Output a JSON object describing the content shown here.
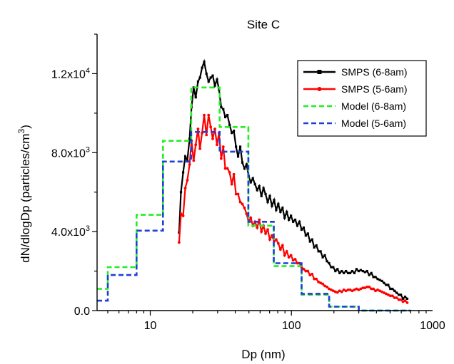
{
  "chart_data": {
    "type": "line",
    "title": "Site C",
    "xlabel": "Dp (nm)",
    "ylabel": "dN/dlogDp (particles/cm",
    "ylabel_sup": "3",
    "ylabel_end": ")",
    "x_scale": "log",
    "xlim": [
      4.2,
      1000
    ],
    "ylim": [
      0,
      14000
    ],
    "x_ticks": [
      {
        "value": 10,
        "label": "10"
      },
      {
        "value": 100,
        "label": "100"
      },
      {
        "value": 1000,
        "label": "1000"
      }
    ],
    "y_ticks": [
      {
        "value": 0,
        "label": "0.0"
      },
      {
        "value": 4000,
        "label": "4.0x10",
        "exp": "3"
      },
      {
        "value": 8000,
        "label": "8.0x10",
        "exp": "3"
      },
      {
        "value": 12000,
        "label": "1.2x10",
        "exp": "4"
      }
    ],
    "grid": false,
    "legend_position": "top-right",
    "series": [
      {
        "name": "SMPS (6-8am)",
        "color": "#000000",
        "style": "solid",
        "marker": "square",
        "x": [
          16.0,
          16.5,
          17.1,
          17.7,
          18.3,
          19.0,
          19.6,
          20.3,
          21.0,
          21.8,
          22.5,
          23.3,
          24.1,
          25.0,
          25.9,
          26.8,
          27.7,
          28.7,
          29.7,
          30.7,
          31.8,
          32.9,
          34.0,
          35.2,
          36.5,
          37.8,
          39.1,
          40.5,
          41.9,
          43.4,
          44.9,
          46.5,
          48.1,
          49.8,
          51.5,
          53.3,
          55.2,
          57.2,
          59.2,
          61.3,
          63.4,
          65.6,
          67.9,
          70.3,
          72.8,
          75.4,
          78.0,
          80.7,
          83.6,
          86.5,
          89.5,
          92.7,
          95.9,
          99.3,
          102.8,
          106.4,
          110.1,
          114.0,
          118.0,
          122.1,
          126.4,
          130.8,
          135.4,
          140.2,
          145.1,
          150.2,
          155.5,
          160.9,
          166.6,
          172.4,
          178.5,
          184.7,
          191.2,
          197.9,
          204.8,
          212.0,
          219.5,
          227.2,
          235.1,
          243.4,
          251.9,
          260.7,
          269.9,
          279.4,
          289.2,
          299.3,
          309.8,
          320.7,
          331.9,
          343.6,
          355.6,
          368.1,
          381.0,
          394.4,
          408.2,
          422.5,
          437.3,
          452.7,
          468.5,
          485.0,
          502.0,
          519.6,
          537.8,
          556.7,
          576.2,
          596.4,
          617.3,
          639.0,
          661.4
        ],
        "y": [
          3950,
          6000,
          7000,
          7800,
          7600,
          8700,
          10300,
          11300,
          10800,
          11600,
          11800,
          12300,
          12600,
          12000,
          11600,
          11800,
          11900,
          11400,
          11700,
          11200,
          10300,
          10200,
          9800,
          9900,
          9400,
          9000,
          9100,
          8300,
          7800,
          8300,
          7500,
          7200,
          7400,
          6800,
          6500,
          6700,
          6400,
          6100,
          6300,
          5800,
          6200,
          5900,
          5500,
          5800,
          5300,
          5600,
          5100,
          5400,
          5000,
          5200,
          4700,
          5000,
          4600,
          4800,
          4500,
          4600,
          4300,
          4500,
          4100,
          4200,
          3800,
          3900,
          3500,
          3600,
          3200,
          3300,
          3000,
          3000,
          2700,
          2800,
          2500,
          2400,
          2200,
          2200,
          2000,
          2100,
          1900,
          2000,
          1900,
          2000,
          1900,
          1900,
          2000,
          1900,
          2100,
          2000,
          2050,
          2000,
          1950,
          2000,
          1800,
          1900,
          1700,
          1700,
          1600,
          1550,
          1500,
          1400,
          1300,
          1300,
          1100,
          1100,
          1000,
          900,
          800,
          800,
          600,
          700,
          600
        ]
      },
      {
        "name": "SMPS (5-6am)",
        "color": "#ff0000",
        "style": "solid",
        "marker": "circle",
        "x": [
          16.0,
          16.5,
          17.1,
          17.7,
          18.3,
          19.0,
          19.6,
          20.3,
          21.0,
          21.8,
          22.5,
          23.3,
          24.1,
          25.0,
          25.9,
          26.8,
          27.7,
          28.7,
          29.7,
          30.7,
          31.8,
          32.9,
          34.0,
          35.2,
          36.5,
          37.8,
          39.1,
          40.5,
          41.9,
          43.4,
          44.9,
          46.5,
          48.1,
          49.8,
          51.5,
          53.3,
          55.2,
          57.2,
          59.2,
          61.3,
          63.4,
          65.6,
          67.9,
          70.3,
          72.8,
          75.4,
          78.0,
          80.7,
          83.6,
          86.5,
          89.5,
          92.7,
          95.9,
          99.3,
          102.8,
          106.4,
          110.1,
          114.0,
          118.0,
          122.1,
          126.4,
          130.8,
          135.4,
          140.2,
          145.1,
          150.2,
          155.5,
          160.9,
          166.6,
          172.4,
          178.5,
          184.7,
          191.2,
          197.9,
          204.8,
          212.0,
          219.5,
          227.2,
          235.1,
          243.4,
          251.9,
          260.7,
          269.9,
          279.4,
          289.2,
          299.3,
          309.8,
          320.7,
          331.9,
          343.6,
          355.6,
          368.1,
          381.0,
          394.4,
          408.2,
          422.5,
          437.3,
          452.7,
          468.5,
          485.0,
          502.0,
          519.6,
          537.8,
          556.7,
          576.2,
          596.4,
          617.3,
          639.0,
          661.4
        ],
        "y": [
          3450,
          4900,
          4800,
          6200,
          6600,
          7400,
          8600,
          7600,
          8400,
          9200,
          8200,
          9000,
          9900,
          8900,
          9900,
          9300,
          8700,
          9200,
          8400,
          9000,
          7700,
          8300,
          7200,
          7200,
          7000,
          6400,
          6900,
          5900,
          5900,
          5500,
          5400,
          5200,
          4900,
          4500,
          4700,
          4300,
          4500,
          4200,
          4600,
          4000,
          4300,
          3900,
          4100,
          3600,
          3800,
          3500,
          3600,
          3400,
          3100,
          3300,
          2800,
          3000,
          2700,
          2800,
          2550,
          2600,
          2400,
          2400,
          2200,
          2100,
          2000,
          2000,
          1800,
          1850,
          1600,
          1600,
          1450,
          1400,
          1350,
          1250,
          1200,
          1100,
          1050,
          1000,
          950,
          920,
          1000,
          950,
          1050,
          1000,
          1050,
          1050,
          1000,
          1050,
          1100,
          1050,
          1100,
          1150,
          1150,
          1200,
          1200,
          1100,
          1100,
          1000,
          1050,
          1000,
          950,
          900,
          850,
          800,
          750,
          750,
          650,
          650,
          550,
          550,
          450,
          500,
          400
        ]
      },
      {
        "name": "Model (6-8am)",
        "color": "#22ee22",
        "style": "dashed",
        "marker": "none",
        "x": [
          4.2,
          5.0,
          5.0,
          8.0,
          8.0,
          12.3,
          12.3,
          19.5,
          19.5,
          31.0,
          31.0,
          49.5,
          49.5,
          75.0,
          75.0,
          118,
          118,
          185,
          185,
          300,
          300,
          700
        ],
        "y": [
          1100,
          1100,
          2200,
          2200,
          4850,
          4850,
          8600,
          8600,
          11300,
          11300,
          9300,
          9300,
          4300,
          4300,
          2250,
          2250,
          800,
          800,
          200,
          200,
          0,
          0
        ]
      },
      {
        "name": "Model (5-6am)",
        "color": "#1f3fd8",
        "style": "dashed",
        "marker": "none",
        "x": [
          4.2,
          5.0,
          5.0,
          8.0,
          8.0,
          12.3,
          12.3,
          19.5,
          19.5,
          31.0,
          31.0,
          49.5,
          49.5,
          75.0,
          75.0,
          118,
          118,
          185,
          185,
          300,
          300,
          700
        ],
        "y": [
          500,
          500,
          1800,
          1800,
          4050,
          4050,
          7550,
          7550,
          9050,
          9050,
          8050,
          8050,
          4500,
          4500,
          2400,
          2400,
          850,
          850,
          200,
          200,
          0,
          0
        ]
      }
    ]
  }
}
